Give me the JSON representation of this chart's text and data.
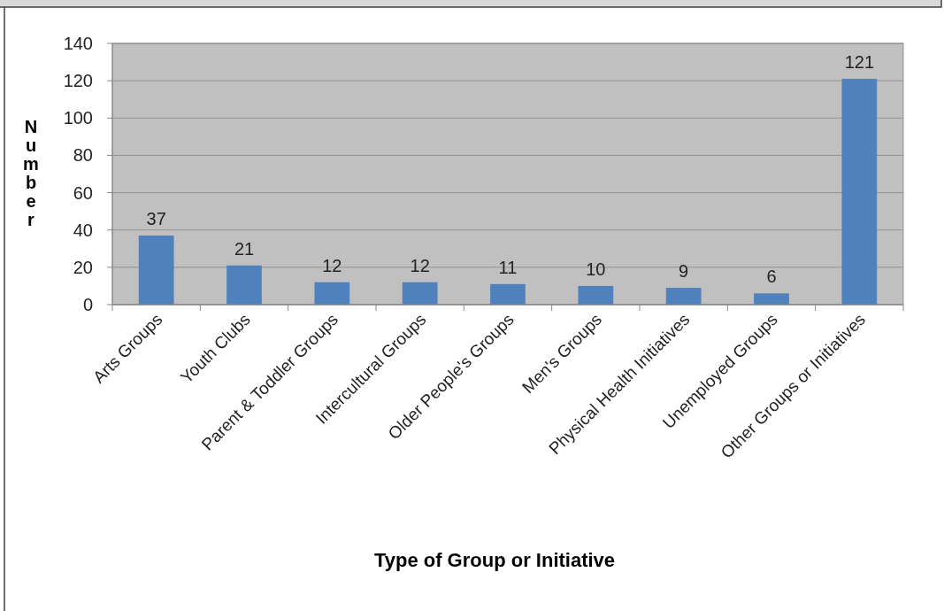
{
  "chart_data": {
    "type": "bar",
    "xlabel": "Type of Group or Initiative",
    "ylabel": "Number",
    "categories": [
      "Arts Groups",
      "Youth Clubs",
      "Parent & Toddler Groups",
      "Intercultural Groups",
      "Older People's Groups",
      "Men's Groups",
      "Physical Health Initiatives",
      "Unemployed Groups",
      "Other Groups or Initiatives"
    ],
    "values": [
      37,
      21,
      12,
      12,
      11,
      10,
      9,
      6,
      121
    ],
    "color": "#4f81bd",
    "ylim": [
      0,
      140
    ],
    "yticks": [
      0,
      20,
      40,
      60,
      80,
      100,
      120,
      140
    ],
    "grid": "y",
    "data_labels": true
  }
}
